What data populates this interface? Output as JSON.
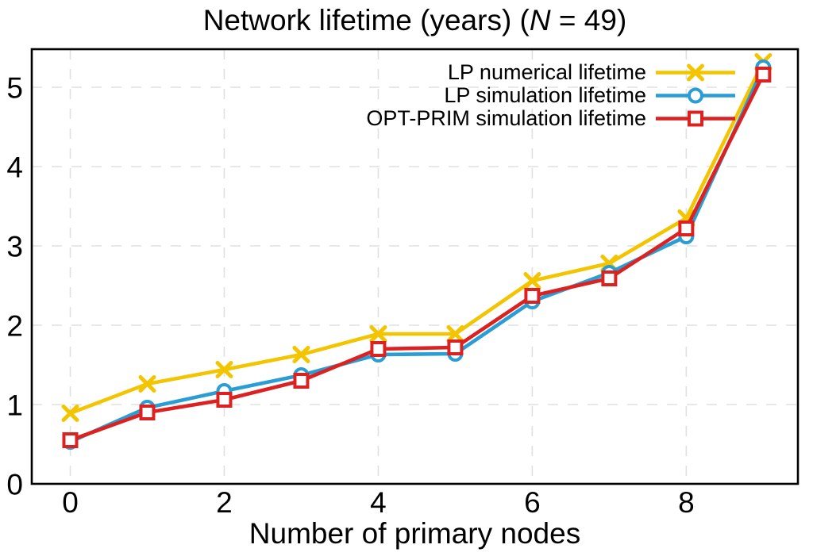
{
  "title": {
    "prefix": "Network lifetime (years) (",
    "var": "N",
    "suffix": " = 49)"
  },
  "chart_data": {
    "type": "line",
    "title": "Network lifetime (years) (N = 49)",
    "xlabel": "Number of primary nodes",
    "ylabel": "",
    "x": [
      0,
      1,
      2,
      3,
      4,
      5,
      6,
      7,
      8,
      9
    ],
    "xlim": [
      -0.5,
      9.45
    ],
    "ylim": [
      0,
      5.48
    ],
    "xticks": [
      "0",
      "2",
      "4",
      "6",
      "8"
    ],
    "xtick_values": [
      0,
      2,
      4,
      6,
      8
    ],
    "yticks": [
      "0",
      "1",
      "2",
      "3",
      "4",
      "5"
    ],
    "ytick_values": [
      0,
      1,
      2,
      3,
      4,
      5
    ],
    "grid": true,
    "grid_color": "#e0e0e0",
    "axis_color": "#000000",
    "legend_position": "top-right-inside",
    "series": [
      {
        "label": "LP numerical lifetime",
        "color": "#f2c500",
        "marker": "x",
        "values": [
          0.89,
          1.26,
          1.44,
          1.63,
          1.89,
          1.89,
          2.56,
          2.78,
          3.35,
          5.32
        ]
      },
      {
        "label": "LP simulation lifetime",
        "color": "#2b9dd5",
        "marker": "circle",
        "values": [
          0.53,
          0.96,
          1.17,
          1.37,
          1.63,
          1.64,
          2.3,
          2.66,
          3.12,
          5.25
        ]
      },
      {
        "label": "OPT-PRIM simulation lifetime",
        "color": "#db2220",
        "marker": "square",
        "values": [
          0.55,
          0.9,
          1.06,
          1.3,
          1.7,
          1.72,
          2.37,
          2.59,
          3.22,
          5.16
        ]
      }
    ]
  }
}
